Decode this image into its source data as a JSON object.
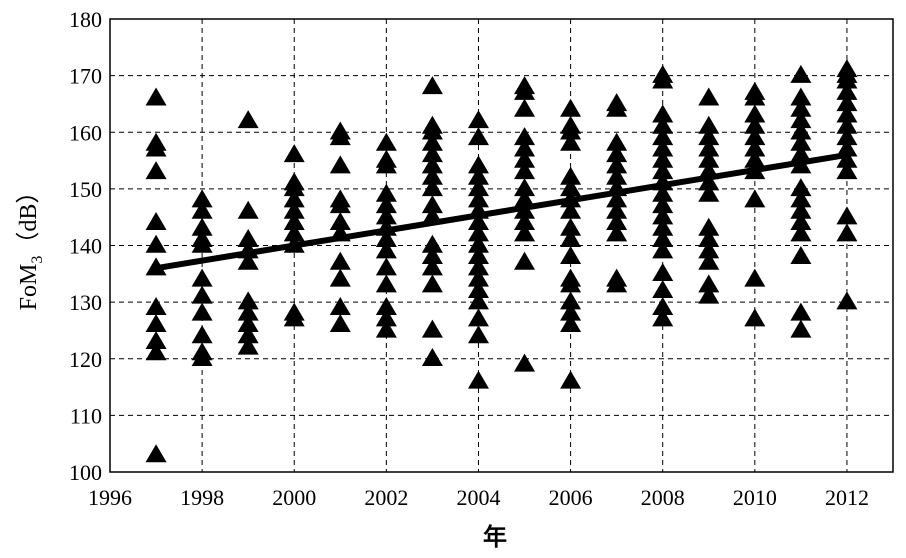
{
  "chart_data": {
    "type": "scatter",
    "xlabel": "年",
    "ylabel_main": "FoM",
    "ylabel_sub": "3",
    "ylabel_unit": "（dB）",
    "xlim": [
      1996,
      2013
    ],
    "ylim": [
      100,
      180
    ],
    "xticks": [
      1996,
      1998,
      2000,
      2002,
      2004,
      2006,
      2008,
      2010,
      2012
    ],
    "yticks": [
      100,
      110,
      120,
      130,
      140,
      150,
      160,
      170,
      180
    ],
    "grid": true,
    "marker": "triangle",
    "marker_color": "#000000",
    "points": {
      "1997": [
        103,
        121,
        123,
        126,
        129,
        136,
        140,
        144,
        153,
        157,
        158,
        166
      ],
      "1998": [
        120,
        121,
        124,
        128,
        131,
        134,
        140,
        141,
        143,
        146,
        148
      ],
      "1999": [
        122,
        124,
        126,
        128,
        130,
        137,
        139,
        141,
        146,
        162
      ],
      "2000": [
        127,
        128,
        140,
        142,
        144,
        146,
        148,
        150,
        151,
        156
      ],
      "2001": [
        126,
        129,
        134,
        137,
        142,
        144,
        147,
        148,
        154,
        159,
        160
      ],
      "2002": [
        125,
        127,
        129,
        133,
        136,
        139,
        141,
        143,
        145,
        147,
        149,
        154,
        155,
        158
      ],
      "2003": [
        120,
        125,
        133,
        136,
        138,
        140,
        145,
        147,
        150,
        152,
        154,
        156,
        158,
        160,
        161,
        168
      ],
      "2004": [
        116,
        124,
        127,
        130,
        132,
        134,
        136,
        138,
        140,
        142,
        144,
        146,
        148,
        150,
        152,
        154,
        159,
        162
      ],
      "2005": [
        119,
        137,
        142,
        144,
        146,
        148,
        150,
        153,
        155,
        157,
        159,
        164,
        167,
        168
      ],
      "2006": [
        116,
        126,
        128,
        130,
        133,
        134,
        138,
        141,
        143,
        146,
        148,
        150,
        152,
        158,
        160,
        161,
        164
      ],
      "2007": [
        133,
        134,
        142,
        144,
        146,
        148,
        150,
        152,
        154,
        156,
        158,
        164,
        165
      ],
      "2008": [
        127,
        129,
        132,
        135,
        139,
        141,
        143,
        145,
        147,
        149,
        151,
        153,
        155,
        157,
        159,
        161,
        163,
        169,
        170
      ],
      "2009": [
        131,
        133,
        137,
        139,
        141,
        143,
        149,
        151,
        153,
        155,
        157,
        159,
        161,
        166
      ],
      "2010": [
        127,
        134,
        148,
        153,
        155,
        157,
        159,
        161,
        163,
        166,
        167
      ],
      "2011": [
        125,
        128,
        138,
        142,
        144,
        146,
        148,
        150,
        154,
        156,
        158,
        160,
        162,
        164,
        166,
        170
      ],
      "2012": [
        130,
        142,
        145,
        153,
        155,
        157,
        159,
        161,
        163,
        165,
        167,
        169,
        170,
        171
      ]
    },
    "trend_line": {
      "x": [
        1997,
        2012
      ],
      "y": [
        136,
        156
      ]
    }
  }
}
